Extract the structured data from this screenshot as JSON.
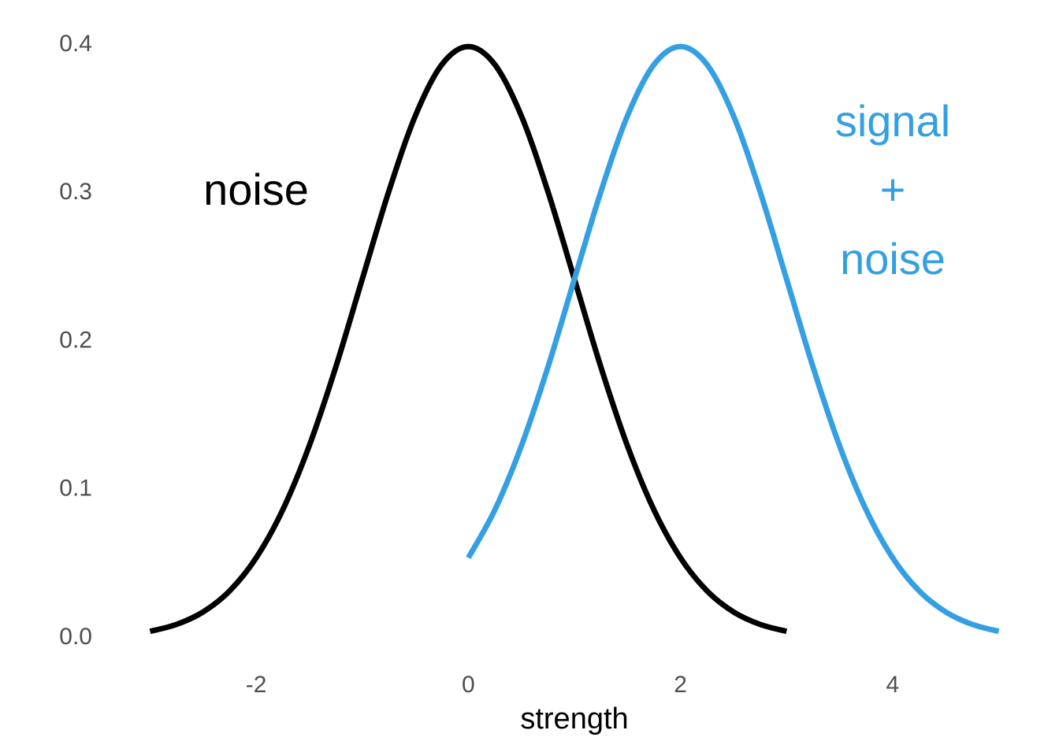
{
  "chart_data": {
    "type": "line",
    "x_label": "strength",
    "xlim": [
      -3,
      5
    ],
    "ylim": [
      0,
      0.4
    ],
    "xticks": [
      -2,
      0,
      2,
      4
    ],
    "yticks": [
      {
        "value": 0,
        "label": "0.0"
      },
      0.1,
      0.2,
      0.3,
      0.4
    ],
    "grid": false,
    "line_width": 7,
    "series": [
      {
        "color": "#000000",
        "x": [
          -3,
          -2.75,
          -2.5,
          -2.25,
          -2,
          -1.75,
          -1.5,
          -1.25,
          -1,
          -0.75,
          -0.5,
          -0.25,
          0,
          0.25,
          0.5,
          0.75,
          1,
          1.25,
          1.5,
          1.75,
          2,
          2.25,
          2.5,
          2.75,
          3
        ],
        "values": [
          0.0044,
          0.0091,
          0.0175,
          0.0317,
          0.054,
          0.0863,
          0.1295,
          0.1826,
          0.242,
          0.3011,
          0.3521,
          0.3867,
          0.3989,
          0.3867,
          0.3521,
          0.3011,
          0.242,
          0.1826,
          0.1295,
          0.0863,
          0.054,
          0.0317,
          0.0175,
          0.0091,
          0.0044
        ]
      },
      {
        "color": "#349fe2",
        "x": [
          0,
          0.25,
          0.5,
          0.75,
          1,
          1.25,
          1.5,
          1.75,
          2,
          2.25,
          2.5,
          2.75,
          3,
          3.25,
          3.5,
          3.75,
          4,
          4.25,
          4.5,
          4.75,
          5
        ],
        "values": [
          0.054,
          0.0863,
          0.1295,
          0.1826,
          0.242,
          0.3011,
          0.3521,
          0.3867,
          0.3989,
          0.3867,
          0.3521,
          0.3011,
          0.242,
          0.1826,
          0.1295,
          0.0863,
          0.054,
          0.0317,
          0.0175,
          0.0091,
          0.0044
        ]
      }
    ],
    "annotations": [
      {
        "text": "noise",
        "color": "#000000"
      },
      {
        "text": "signal",
        "color": "#349fe2"
      },
      {
        "text": "+",
        "color": "#349fe2"
      },
      {
        "text": "noise",
        "color": "#349fe2"
      }
    ]
  }
}
